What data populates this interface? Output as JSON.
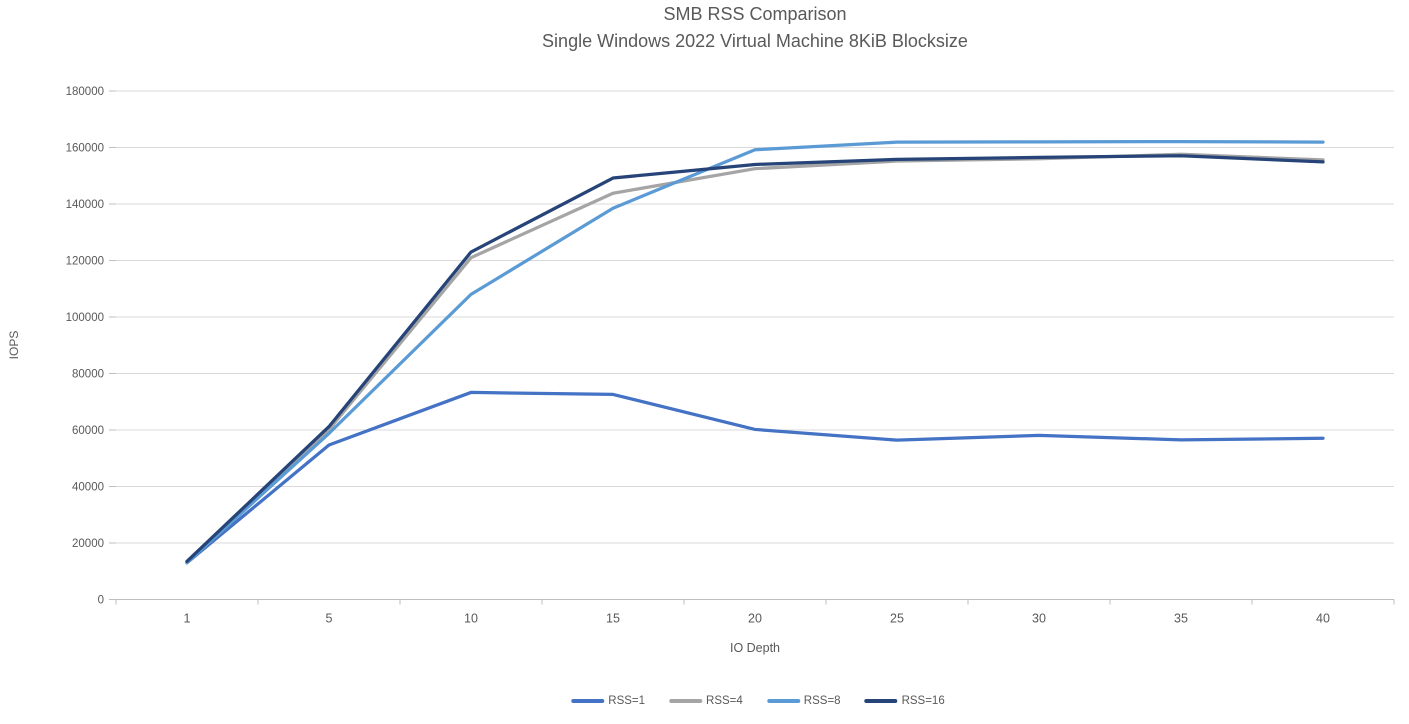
{
  "chart_data": {
    "type": "line",
    "title": "SMB RSS Comparison",
    "subtitle": "Single Windows 2022 Virtual Machine 8KiB Blocksize",
    "xlabel": "IO Depth",
    "ylabel": "IOPS",
    "categories": [
      1,
      5,
      10,
      15,
      20,
      25,
      30,
      35,
      40
    ],
    "series": [
      {
        "name": "RSS=1",
        "color": "#4472C4",
        "values": [
          13000,
          54700,
          73300,
          72600,
          60200,
          56400,
          58100,
          56500,
          57100
        ]
      },
      {
        "name": "RSS=4",
        "color": "#A5A5A5",
        "values": [
          13200,
          60200,
          121000,
          143800,
          152500,
          155200,
          156000,
          157600,
          155600
        ]
      },
      {
        "name": "RSS=8",
        "color": "#5B9BD5",
        "values": [
          13100,
          58800,
          108000,
          138500,
          159200,
          161900,
          162000,
          162100,
          161900
        ]
      },
      {
        "name": "RSS=16",
        "color": "#264478",
        "values": [
          13500,
          61200,
          123000,
          149200,
          154000,
          155800,
          156500,
          157100,
          154900
        ]
      }
    ],
    "ylim": [
      0,
      180000
    ],
    "ytick_step": 20000,
    "grid": true,
    "legend_position": "bottom",
    "colors": {
      "grid": "#D9D9D9",
      "axis": "#BFBFBF",
      "tick": "#BFBFBF",
      "text": "#595959"
    }
  }
}
